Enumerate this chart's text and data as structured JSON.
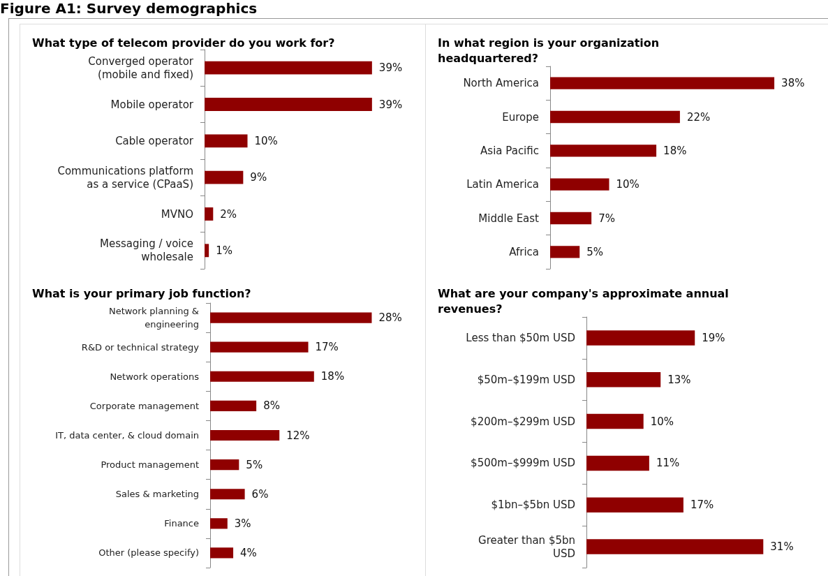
{
  "chart_data": [
    {
      "type": "bar",
      "orientation": "horizontal",
      "title": "What type of telecom provider do you work for?",
      "annotations": [
        "Figure A1: Survey demographics"
      ],
      "categories": [
        "Converged operator\n(mobile and fixed)",
        "Mobile operator",
        "Cable operator",
        "Communications platform\nas a service (CPaaS)",
        "MVNO",
        "Messaging / voice\nwholesale"
      ],
      "values": [
        39,
        39,
        10,
        9,
        2,
        1
      ],
      "value_labels": [
        "39%",
        "39%",
        "10%",
        "9%",
        "2%",
        "1%"
      ],
      "color": "#8f0000",
      "tick_labels": "y"
    },
    {
      "type": "bar",
      "orientation": "horizontal",
      "title": "In what region is your organization\nheadquartered?",
      "categories": [
        "North America",
        "Europe",
        "Asia Pacific",
        "Latin America",
        "Middle East",
        "Africa"
      ],
      "values": [
        38,
        22,
        18,
        10,
        7,
        5
      ],
      "value_labels": [
        "38%",
        "22%",
        "18%",
        "10%",
        "7%",
        "5%"
      ],
      "color": "#8f0000",
      "tick_labels": "y"
    },
    {
      "type": "bar",
      "orientation": "horizontal",
      "title": "What is your primary job function?",
      "categories": [
        "Network planning &\nengineering",
        "R&D or technical strategy",
        "Network operations",
        "Corporate management",
        "IT, data center, & cloud domain",
        "Product management",
        "Sales & marketing",
        "Finance",
        "Other (please specify)"
      ],
      "values": [
        28,
        17,
        18,
        8,
        12,
        5,
        6,
        3,
        4
      ],
      "value_labels": [
        "28%",
        "17%",
        "18%",
        "8%",
        "12%",
        "5%",
        "6%",
        "3%",
        "4%"
      ],
      "color": "#8f0000",
      "tick_labels": "y"
    },
    {
      "type": "bar",
      "orientation": "horizontal",
      "title": "What are your company's approximate annual\nrevenues?",
      "categories": [
        "Less than $50m USD",
        "$50m–$199m USD",
        "$200m–$299m USD",
        "$500m–$999m USD",
        "$1bn–$5bn USD",
        "Greater than $5bn\nUSD"
      ],
      "values": [
        19,
        13,
        10,
        11,
        17,
        31
      ],
      "value_labels": [
        "19%",
        "13%",
        "10%",
        "11%",
        "17%",
        "31%"
      ],
      "color": "#8f0000",
      "tick_labels": "y"
    }
  ]
}
